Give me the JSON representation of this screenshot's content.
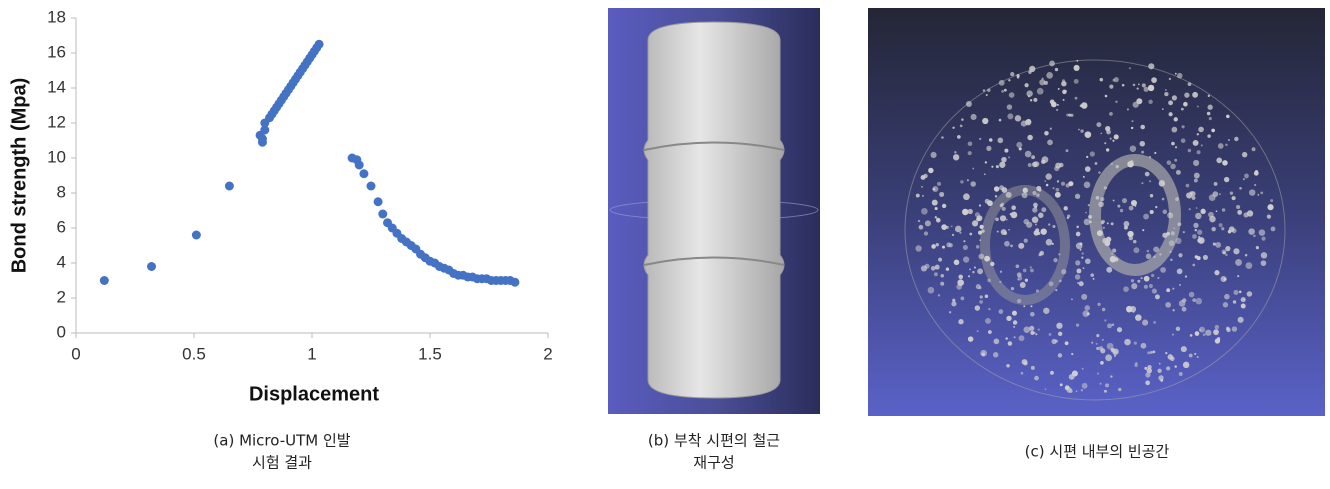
{
  "chart_data": {
    "type": "scatter",
    "xlabel": "Displacement",
    "ylabel": "Bond strength (Mpa)",
    "color": "#4472c4",
    "x": [
      0.12,
      0.32,
      0.51,
      0.65,
      0.78,
      0.79,
      0.79,
      0.8,
      0.8,
      0.82,
      0.83,
      0.84,
      0.85,
      0.86,
      0.87,
      0.88,
      0.89,
      0.9,
      0.91,
      0.92,
      0.93,
      0.94,
      0.95,
      0.96,
      0.97,
      0.98,
      0.99,
      1.0,
      1.01,
      1.02,
      1.03,
      1.17,
      1.19,
      1.2,
      1.22,
      1.25,
      1.28,
      1.3,
      1.32,
      1.34,
      1.36,
      1.38,
      1.4,
      1.42,
      1.44,
      1.46,
      1.48,
      1.5,
      1.52,
      1.54,
      1.56,
      1.58,
      1.6,
      1.62,
      1.64,
      1.66,
      1.68,
      1.7,
      1.72,
      1.74,
      1.76,
      1.78,
      1.8,
      1.82,
      1.84,
      1.86
    ],
    "values": [
      3.0,
      3.8,
      5.6,
      8.4,
      11.3,
      10.9,
      11.1,
      11.6,
      12.0,
      12.3,
      12.5,
      12.7,
      12.9,
      13.1,
      13.3,
      13.5,
      13.7,
      13.9,
      14.1,
      14.3,
      14.5,
      14.7,
      14.9,
      15.1,
      15.3,
      15.5,
      15.7,
      15.9,
      16.1,
      16.3,
      16.5,
      10.0,
      9.9,
      9.6,
      9.1,
      8.4,
      7.5,
      6.8,
      6.3,
      6.0,
      5.7,
      5.4,
      5.2,
      5.0,
      4.8,
      4.5,
      4.3,
      4.1,
      4.0,
      3.8,
      3.7,
      3.6,
      3.4,
      3.3,
      3.3,
      3.2,
      3.2,
      3.1,
      3.1,
      3.1,
      3.0,
      3.0,
      3.0,
      3.0,
      3.0,
      2.9
    ],
    "xlim": [
      0,
      2
    ],
    "xticks": [
      0,
      0.5,
      1,
      1.5,
      2
    ],
    "ylim": [
      0,
      18
    ],
    "yticks": [
      0,
      2,
      4,
      6,
      8,
      10,
      12,
      14,
      16,
      18
    ],
    "grid": false
  },
  "captions": [
    [
      "(a) Micro-UTM 인발",
      "시험 결과"
    ],
    [
      "(b) 부착 시편의 철근",
      "재구성"
    ],
    [
      "(c) 시편 내부의 빈공간"
    ]
  ]
}
